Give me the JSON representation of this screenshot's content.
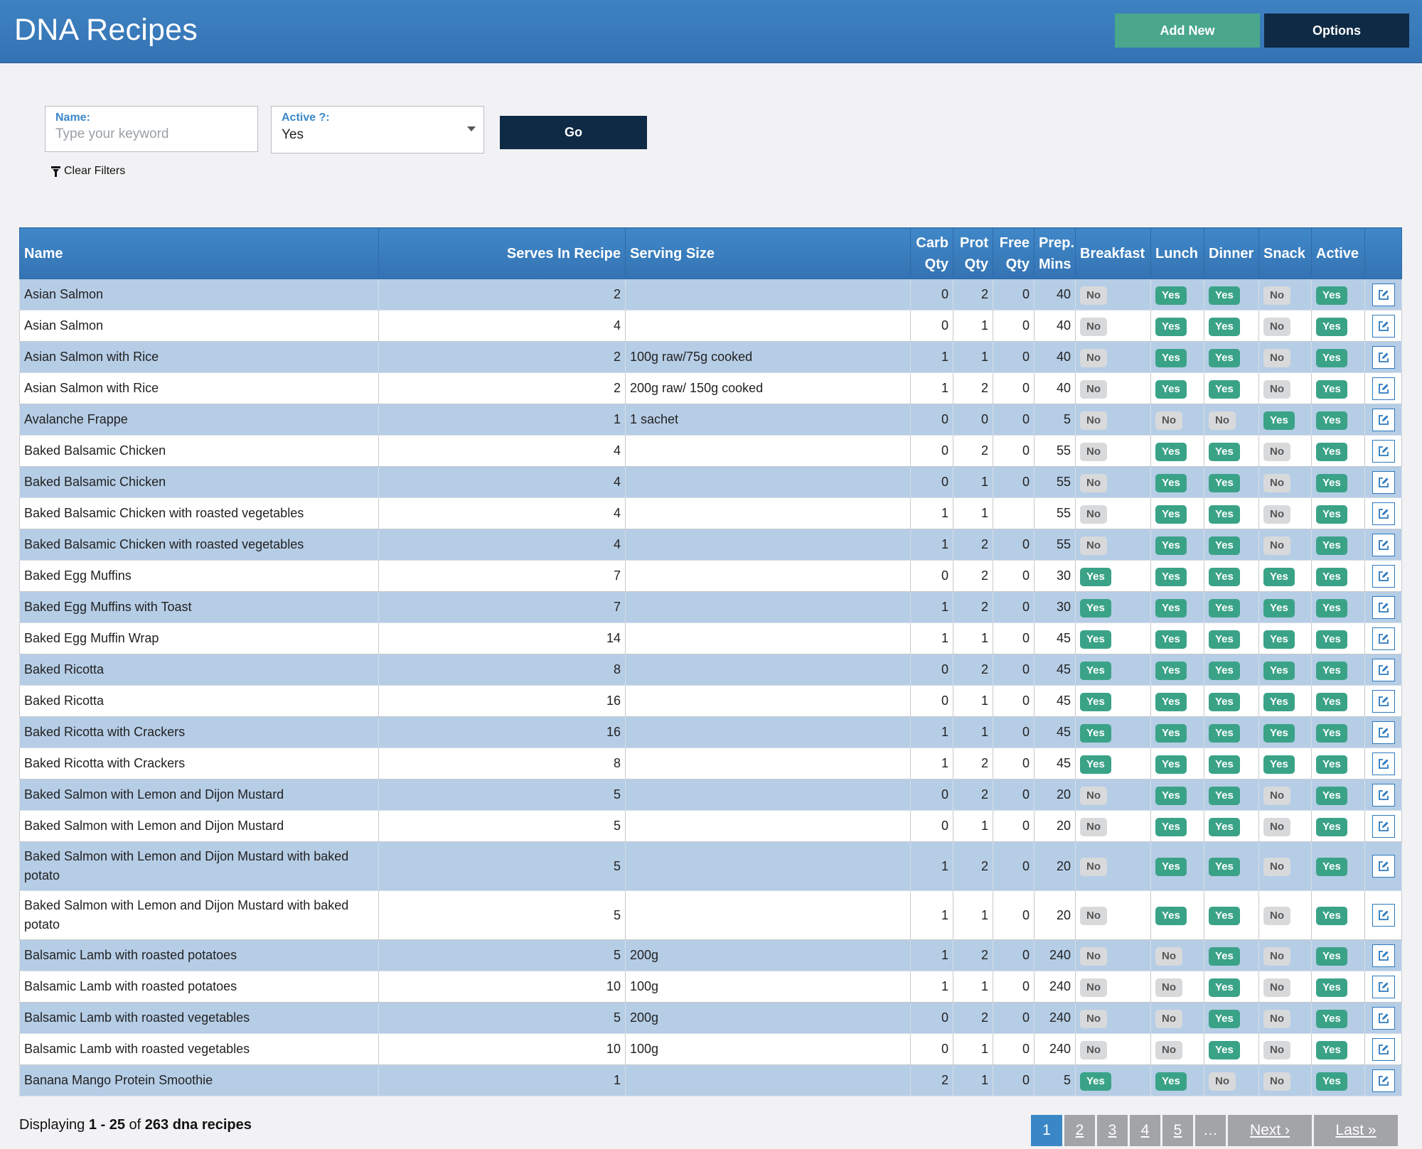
{
  "header": {
    "title": "DNA Recipes",
    "add_new_label": "Add New",
    "options_label": "Options"
  },
  "filters": {
    "name_label": "Name:",
    "name_placeholder": "Type your keyword",
    "name_value": "",
    "active_label": "Active ?:",
    "active_value": "Yes",
    "go_label": "Go",
    "clear_label": "Clear Filters"
  },
  "table": {
    "columns": [
      "Name",
      "Serves In Recipe",
      "Serving Size",
      "Carb Qty",
      "Prot Qty",
      "Free Qty",
      "Prep. Mins",
      "Breakfast",
      "Lunch",
      "Dinner",
      "Snack",
      "Active",
      ""
    ],
    "rows": [
      {
        "name": "Asian Salmon",
        "serves": "2",
        "size": "",
        "carb": "0",
        "prot": "2",
        "free": "0",
        "prep": "40",
        "breakfast": "No",
        "lunch": "Yes",
        "dinner": "Yes",
        "snack": "No",
        "active": "Yes"
      },
      {
        "name": "Asian Salmon",
        "serves": "4",
        "size": "",
        "carb": "0",
        "prot": "1",
        "free": "0",
        "prep": "40",
        "breakfast": "No",
        "lunch": "Yes",
        "dinner": "Yes",
        "snack": "No",
        "active": "Yes"
      },
      {
        "name": "Asian Salmon with Rice",
        "serves": "2",
        "size": "100g raw/75g cooked",
        "carb": "1",
        "prot": "1",
        "free": "0",
        "prep": "40",
        "breakfast": "No",
        "lunch": "Yes",
        "dinner": "Yes",
        "snack": "No",
        "active": "Yes"
      },
      {
        "name": "Asian Salmon with Rice",
        "serves": "2",
        "size": "200g raw/ 150g cooked",
        "carb": "1",
        "prot": "2",
        "free": "0",
        "prep": "40",
        "breakfast": "No",
        "lunch": "Yes",
        "dinner": "Yes",
        "snack": "No",
        "active": "Yes"
      },
      {
        "name": "Avalanche Frappe",
        "serves": "1",
        "size": "1 sachet",
        "carb": "0",
        "prot": "0",
        "free": "0",
        "prep": "5",
        "breakfast": "No",
        "lunch": "No",
        "dinner": "No",
        "snack": "Yes",
        "active": "Yes"
      },
      {
        "name": "Baked Balsamic Chicken",
        "serves": "4",
        "size": "",
        "carb": "0",
        "prot": "2",
        "free": "0",
        "prep": "55",
        "breakfast": "No",
        "lunch": "Yes",
        "dinner": "Yes",
        "snack": "No",
        "active": "Yes"
      },
      {
        "name": "Baked Balsamic Chicken",
        "serves": "4",
        "size": "",
        "carb": "0",
        "prot": "1",
        "free": "0",
        "prep": "55",
        "breakfast": "No",
        "lunch": "Yes",
        "dinner": "Yes",
        "snack": "No",
        "active": "Yes"
      },
      {
        "name": "Baked Balsamic Chicken with roasted vegetables",
        "serves": "4",
        "size": "",
        "carb": "1",
        "prot": "1",
        "free": "",
        "prep": "55",
        "breakfast": "No",
        "lunch": "Yes",
        "dinner": "Yes",
        "snack": "No",
        "active": "Yes"
      },
      {
        "name": "Baked Balsamic Chicken with roasted vegetables",
        "serves": "4",
        "size": "",
        "carb": "1",
        "prot": "2",
        "free": "0",
        "prep": "55",
        "breakfast": "No",
        "lunch": "Yes",
        "dinner": "Yes",
        "snack": "No",
        "active": "Yes"
      },
      {
        "name": "Baked Egg Muffins",
        "serves": "7",
        "size": "",
        "carb": "0",
        "prot": "2",
        "free": "0",
        "prep": "30",
        "breakfast": "Yes",
        "lunch": "Yes",
        "dinner": "Yes",
        "snack": "Yes",
        "active": "Yes"
      },
      {
        "name": "Baked Egg Muffins with Toast",
        "serves": "7",
        "size": "",
        "carb": "1",
        "prot": "2",
        "free": "0",
        "prep": "30",
        "breakfast": "Yes",
        "lunch": "Yes",
        "dinner": "Yes",
        "snack": "Yes",
        "active": "Yes"
      },
      {
        "name": "Baked Egg Muffin Wrap",
        "serves": "14",
        "size": "",
        "carb": "1",
        "prot": "1",
        "free": "0",
        "prep": "45",
        "breakfast": "Yes",
        "lunch": "Yes",
        "dinner": "Yes",
        "snack": "Yes",
        "active": "Yes"
      },
      {
        "name": "Baked Ricotta",
        "serves": "8",
        "size": "",
        "carb": "0",
        "prot": "2",
        "free": "0",
        "prep": "45",
        "breakfast": "Yes",
        "lunch": "Yes",
        "dinner": "Yes",
        "snack": "Yes",
        "active": "Yes"
      },
      {
        "name": "Baked Ricotta",
        "serves": "16",
        "size": "",
        "carb": "0",
        "prot": "1",
        "free": "0",
        "prep": "45",
        "breakfast": "Yes",
        "lunch": "Yes",
        "dinner": "Yes",
        "snack": "Yes",
        "active": "Yes"
      },
      {
        "name": "Baked Ricotta with Crackers",
        "serves": "16",
        "size": "",
        "carb": "1",
        "prot": "1",
        "free": "0",
        "prep": "45",
        "breakfast": "Yes",
        "lunch": "Yes",
        "dinner": "Yes",
        "snack": "Yes",
        "active": "Yes"
      },
      {
        "name": "Baked Ricotta with Crackers",
        "serves": "8",
        "size": "",
        "carb": "1",
        "prot": "2",
        "free": "0",
        "prep": "45",
        "breakfast": "Yes",
        "lunch": "Yes",
        "dinner": "Yes",
        "snack": "Yes",
        "active": "Yes"
      },
      {
        "name": "Baked Salmon with Lemon and Dijon Mustard",
        "serves": "5",
        "size": "",
        "carb": "0",
        "prot": "2",
        "free": "0",
        "prep": "20",
        "breakfast": "No",
        "lunch": "Yes",
        "dinner": "Yes",
        "snack": "No",
        "active": "Yes"
      },
      {
        "name": "Baked Salmon with Lemon and Dijon Mustard",
        "serves": "5",
        "size": "",
        "carb": "0",
        "prot": "1",
        "free": "0",
        "prep": "20",
        "breakfast": "No",
        "lunch": "Yes",
        "dinner": "Yes",
        "snack": "No",
        "active": "Yes"
      },
      {
        "name": "Baked Salmon with Lemon and Dijon Mustard with baked potato",
        "serves": "5",
        "size": "",
        "carb": "1",
        "prot": "2",
        "free": "0",
        "prep": "20",
        "breakfast": "No",
        "lunch": "Yes",
        "dinner": "Yes",
        "snack": "No",
        "active": "Yes"
      },
      {
        "name": "Baked Salmon with Lemon and Dijon Mustard with baked potato",
        "serves": "5",
        "size": "",
        "carb": "1",
        "prot": "1",
        "free": "0",
        "prep": "20",
        "breakfast": "No",
        "lunch": "Yes",
        "dinner": "Yes",
        "snack": "No",
        "active": "Yes"
      },
      {
        "name": "Balsamic Lamb with roasted potatoes",
        "serves": "5",
        "size": "200g",
        "carb": "1",
        "prot": "2",
        "free": "0",
        "prep": "240",
        "breakfast": "No",
        "lunch": "No",
        "dinner": "Yes",
        "snack": "No",
        "active": "Yes"
      },
      {
        "name": "Balsamic Lamb with roasted potatoes",
        "serves": "10",
        "size": "100g",
        "carb": "1",
        "prot": "1",
        "free": "0",
        "prep": "240",
        "breakfast": "No",
        "lunch": "No",
        "dinner": "Yes",
        "snack": "No",
        "active": "Yes"
      },
      {
        "name": "Balsamic Lamb with roasted vegetables",
        "serves": "5",
        "size": "200g",
        "carb": "0",
        "prot": "2",
        "free": "0",
        "prep": "240",
        "breakfast": "No",
        "lunch": "No",
        "dinner": "Yes",
        "snack": "No",
        "active": "Yes"
      },
      {
        "name": "Balsamic Lamb with roasted vegetables",
        "serves": "10",
        "size": "100g",
        "carb": "0",
        "prot": "1",
        "free": "0",
        "prep": "240",
        "breakfast": "No",
        "lunch": "No",
        "dinner": "Yes",
        "snack": "No",
        "active": "Yes"
      },
      {
        "name": "Banana Mango Protein Smoothie",
        "serves": "1",
        "size": "",
        "carb": "2",
        "prot": "1",
        "free": "0",
        "prep": "5",
        "breakfast": "Yes",
        "lunch": "Yes",
        "dinner": "No",
        "snack": "No",
        "active": "Yes"
      }
    ]
  },
  "footer": {
    "prefix": "Displaying ",
    "range": "1 - 25",
    "of": " of ",
    "total": "263 dna recipes"
  },
  "pagination": {
    "pages": [
      "1",
      "2",
      "3",
      "4",
      "5"
    ],
    "current": "1",
    "ellipsis": "…",
    "next_label": "Next ›",
    "last_label": "Last »"
  },
  "colors": {
    "header_blue": "#3a7dbf",
    "add_new_green": "#4aa78b",
    "navy": "#0f2a45",
    "row_alt_blue": "#b6cde6",
    "badge_yes": "#3aa387",
    "badge_no": "#d8d9db",
    "page_current": "#3a87c8",
    "page_other": "#a3a4a7"
  },
  "icons": {
    "edit": "edit-icon",
    "funnel": "funnel-icon",
    "caret": "chevron-down-icon"
  }
}
